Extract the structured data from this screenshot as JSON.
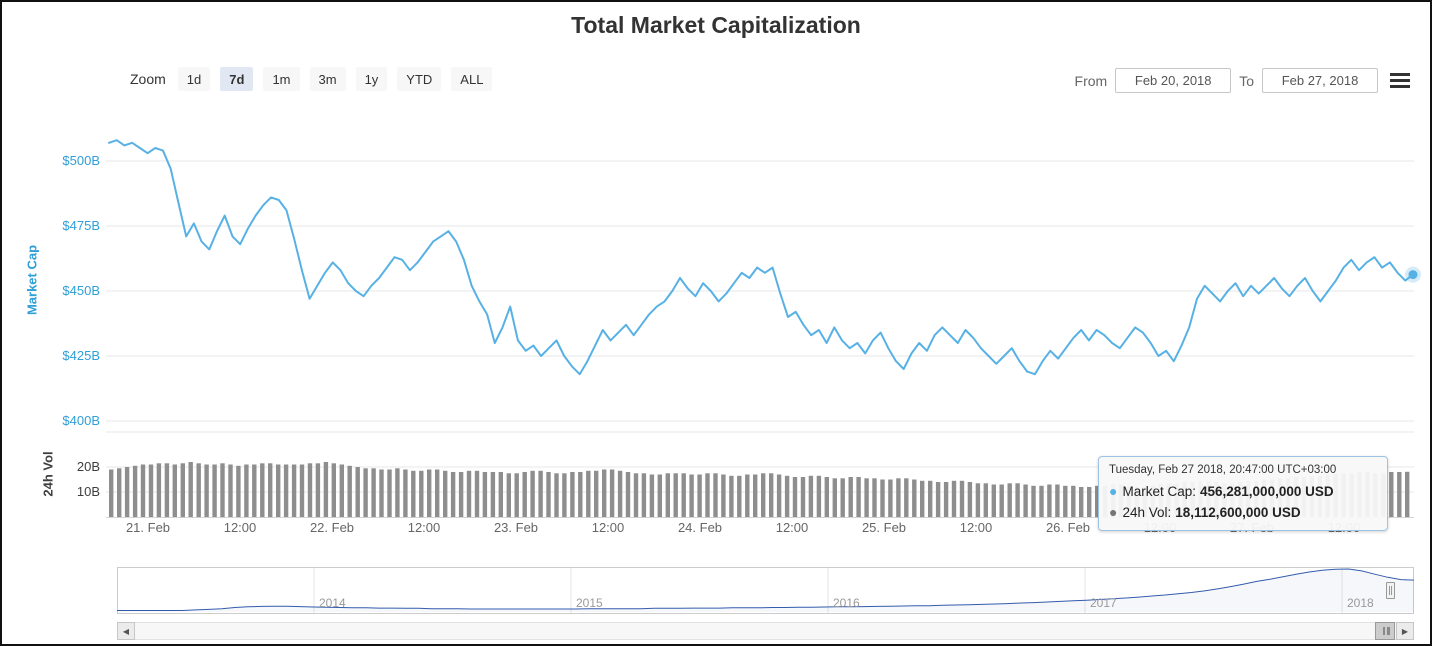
{
  "title": "Total Market Capitalization",
  "range_selector": {
    "zoom_label": "Zoom",
    "buttons": [
      {
        "label": "1d",
        "selected": false
      },
      {
        "label": "7d",
        "selected": true
      },
      {
        "label": "1m",
        "selected": false
      },
      {
        "label": "3m",
        "selected": false
      },
      {
        "label": "1y",
        "selected": false
      },
      {
        "label": "YTD",
        "selected": false
      },
      {
        "label": "ALL",
        "selected": false
      }
    ],
    "from_label": "From",
    "from_value": "Feb 20, 2018",
    "to_label": "To",
    "to_value": "Feb 27, 2018"
  },
  "tooltip": {
    "header": "Tuesday, Feb 27 2018, 20:47:00 UTC+03:00",
    "bullet": "●",
    "rows": [
      {
        "label": "Market Cap:",
        "value": "456,281,000,000 USD",
        "color": "#57b1e5"
      },
      {
        "label": "24h Vol:",
        "value": "18,112,600,000 USD",
        "color": "#757575"
      }
    ]
  },
  "scrollbar": {
    "left_arrow": "◀",
    "right_arrow": "▶"
  },
  "colors": {
    "series_blue": "#57b1e5",
    "axis_label_blue": "#2f9fd8",
    "volume_gray": "#8e8e8e",
    "navigator_blue": "#335cad",
    "button_bg": "#f7f7f7",
    "selected_button_bg": "#e2e8f3",
    "grid_line": "#e7e7e7",
    "tooltip_border": "#9ec2e4"
  },
  "chart_data": [
    {
      "type": "line",
      "name": "Market Cap",
      "title": "Total Market Capitalization",
      "ylabel": "Market Cap",
      "unit": "USD billions",
      "ytick_labels": [
        "$500B",
        "$475B",
        "$450B",
        "$425B",
        "$400B"
      ],
      "ytick_values": [
        500,
        475,
        450,
        425,
        400
      ],
      "ylim": [
        395,
        517
      ],
      "x_axis_labels": [
        "21. Feb",
        "12:00",
        "22. Feb",
        "12:00",
        "23. Feb",
        "12:00",
        "24. Feb",
        "12:00",
        "25. Feb",
        "12:00",
        "26. Feb",
        "12:00",
        "27. Feb",
        "12:00"
      ],
      "last_point_value": 456.281,
      "color": "#57b1e5",
      "values": [
        507,
        508,
        506,
        507,
        505,
        503,
        505,
        504,
        497,
        484,
        471,
        476,
        469,
        466,
        473,
        479,
        471,
        468,
        474,
        479,
        483,
        486,
        485,
        481,
        470,
        458,
        447,
        452,
        457,
        461,
        458,
        453,
        450,
        448,
        452,
        455,
        459,
        463,
        462,
        458,
        461,
        465,
        469,
        471,
        473,
        469,
        462,
        452,
        446,
        441,
        430,
        436,
        444,
        431,
        427,
        429,
        425,
        428,
        431,
        425,
        421,
        418,
        423,
        429,
        435,
        431,
        434,
        437,
        433,
        437,
        441,
        444,
        446,
        450,
        455,
        451,
        448,
        453,
        450,
        446,
        449,
        453,
        457,
        455,
        459,
        457,
        459,
        449,
        440,
        442,
        437,
        433,
        435,
        430,
        436,
        431,
        428,
        430,
        426,
        431,
        434,
        428,
        423,
        420,
        426,
        430,
        427,
        433,
        436,
        433,
        430,
        435,
        432,
        428,
        425,
        422,
        425,
        428,
        423,
        419,
        418,
        423,
        427,
        424,
        428,
        432,
        435,
        431,
        435,
        433,
        430,
        428,
        432,
        436,
        434,
        430,
        425,
        427,
        423,
        429,
        436,
        447,
        452,
        449,
        446,
        450,
        453,
        448,
        452,
        449,
        452,
        455,
        451,
        448,
        452,
        455,
        450,
        446,
        450,
        454,
        459,
        462,
        458,
        461,
        463,
        459,
        461,
        457,
        454,
        456.3
      ]
    },
    {
      "type": "bar",
      "name": "24h Vol",
      "ylabel": "24h Vol",
      "unit": "USD billions",
      "ytick_labels": [
        "20B",
        "10B"
      ],
      "ytick_values": [
        20,
        10
      ],
      "ylim": [
        0,
        34
      ],
      "last_point_value": 18.1126,
      "color": "#8e8e8e",
      "values": [
        19,
        19.5,
        20,
        20.5,
        21,
        21,
        21.5,
        21.5,
        21,
        21.5,
        22,
        21.5,
        21,
        21,
        21.5,
        21,
        20.5,
        21,
        21,
        21.5,
        21.5,
        21,
        21,
        21,
        21,
        21.5,
        21.5,
        22,
        21.5,
        21,
        20.5,
        20,
        19.5,
        19.5,
        19,
        19,
        19.5,
        19,
        18.5,
        18.5,
        19,
        19,
        18.5,
        18,
        18,
        18.5,
        18.5,
        18,
        18,
        18,
        17.5,
        17.5,
        18,
        18.5,
        18.5,
        18,
        17.5,
        17.5,
        18,
        18,
        18.5,
        18.5,
        19,
        19,
        18.5,
        18,
        17.5,
        17.5,
        17,
        17,
        17.5,
        17.5,
        17.5,
        17,
        17,
        17.5,
        17.5,
        17,
        16.5,
        16.5,
        17,
        17,
        17.5,
        17.5,
        17,
        16.5,
        16,
        16,
        16.5,
        16.5,
        16,
        15.5,
        15.5,
        16,
        16,
        15.5,
        15.5,
        15,
        15,
        15.5,
        15.5,
        15,
        14.5,
        14.5,
        14,
        14,
        14.5,
        14.5,
        14,
        13.5,
        13.5,
        13,
        13,
        13.5,
        13.5,
        13,
        12.5,
        12.5,
        13,
        13,
        12.5,
        12.5,
        12,
        12,
        12.5,
        12.5,
        13,
        13,
        12.5,
        12,
        12,
        12.5,
        13,
        13.5,
        13.5,
        14,
        14,
        14.5,
        14.5,
        14,
        13.5,
        13.5,
        14,
        14.5,
        14.5,
        15,
        15,
        15.5,
        15.5,
        16,
        16,
        16.5,
        16.5,
        17,
        17,
        17.5,
        17.5,
        18,
        18,
        17.5,
        17.5,
        18,
        18,
        18.1
      ]
    },
    {
      "type": "area",
      "name": "navigator",
      "x_labels": [
        "2014",
        "2015",
        "2016",
        "2017",
        "2018"
      ],
      "unit": "USD billions",
      "scale": "sqrt",
      "color": "#335cad",
      "values": [
        1,
        1,
        1,
        1,
        1,
        1,
        2,
        3,
        5,
        9,
        12,
        14,
        15,
        15,
        13,
        11,
        10,
        9,
        8,
        8,
        7,
        7,
        6,
        6,
        5,
        5,
        5,
        4,
        4,
        4,
        4,
        4,
        4,
        4,
        4,
        4,
        5,
        5,
        5,
        5,
        5,
        6,
        6,
        6,
        7,
        7,
        7,
        8,
        8,
        8,
        9,
        9,
        10,
        10,
        11,
        12,
        12,
        13,
        14,
        15,
        16,
        17,
        18,
        20,
        22,
        24,
        26,
        29,
        32,
        36,
        40,
        45,
        50,
        56,
        62,
        70,
        78,
        88,
        100,
        115,
        130,
        150,
        170,
        200,
        240,
        290,
        350,
        420,
        480,
        560,
        640,
        720,
        780,
        820,
        830,
        760,
        640,
        540,
        470,
        456
      ]
    }
  ]
}
